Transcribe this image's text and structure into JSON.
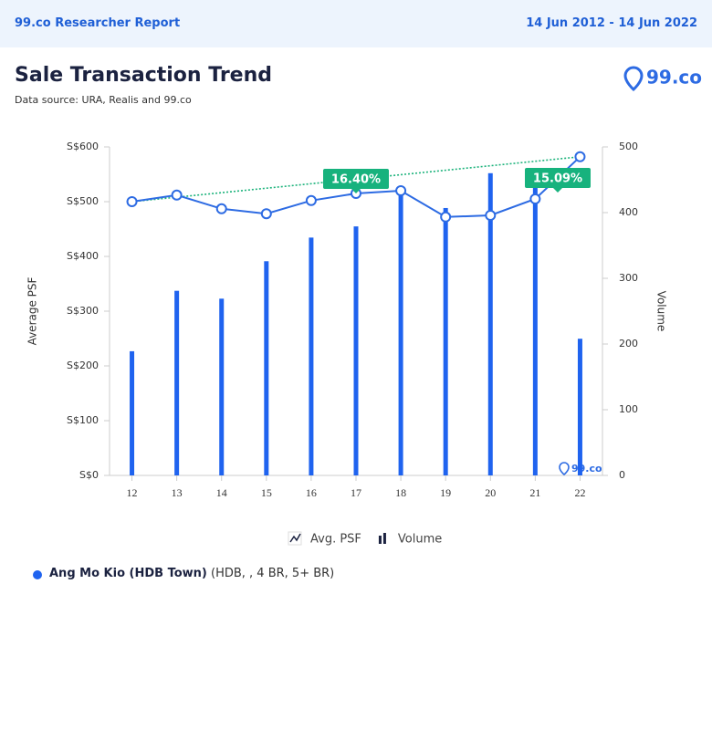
{
  "header": {
    "title": "99.co Researcher Report",
    "date_range": "14 Jun 2012 - 14 Jun 2022"
  },
  "logo": "99.co",
  "chart_data": {
    "type": "combo",
    "title": "Sale Transaction Trend",
    "subtitle": "Data source: URA, Realis and 99.co",
    "ylabel": "Average PSF",
    "y2label": "Volume",
    "categories": [
      "12",
      "13",
      "14",
      "15",
      "16",
      "17",
      "18",
      "19",
      "20",
      "21",
      "22"
    ],
    "series": [
      {
        "name": "Avg. PSF",
        "type": "line",
        "color": "#2d6be3",
        "values": [
          500,
          512,
          487,
          478,
          502,
          515,
          520,
          472,
          475,
          505,
          582
        ]
      },
      {
        "name": "Volume",
        "type": "bar",
        "axis": "y2",
        "color": "#1f63ef",
        "values": [
          189,
          281,
          269,
          326,
          362,
          379,
          435,
          407,
          460,
          439,
          208
        ]
      }
    ],
    "trend_color": "#1db37c",
    "annotations": [
      "16.40%",
      "15.09%"
    ],
    "ylim": [
      0,
      600
    ],
    "yticks": [
      {
        "value": 0,
        "label": "S$0"
      },
      {
        "value": 100,
        "label": "S$100"
      },
      {
        "value": 200,
        "label": "S$200"
      },
      {
        "value": 300,
        "label": "S$300"
      },
      {
        "value": 400,
        "label": "S$400"
      },
      {
        "value": 500,
        "label": "S$500"
      },
      {
        "value": 600,
        "label": "S$600"
      }
    ],
    "y2lim": [
      0,
      500
    ],
    "y2ticks": [
      0,
      100,
      200,
      300,
      400,
      500
    ]
  },
  "footer": {
    "name": "Ang Mo Kio (HDB Town)",
    "detail": "(HDB, , 4 BR, 5+ BR)"
  }
}
